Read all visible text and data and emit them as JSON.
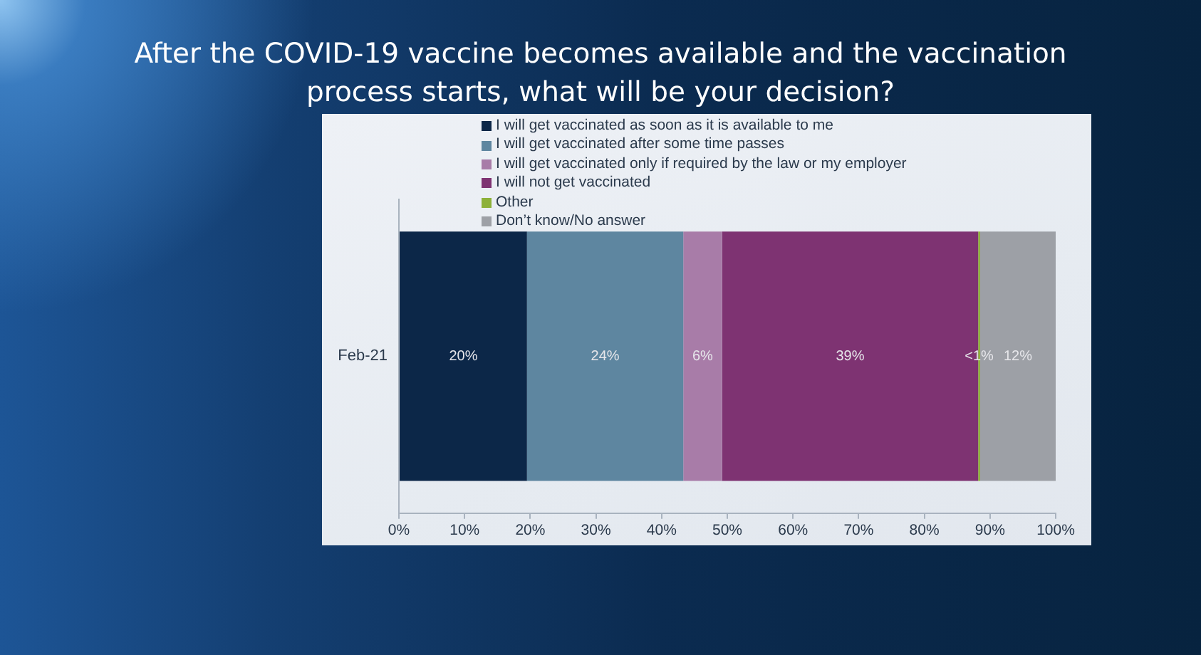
{
  "chart_data": {
    "type": "bar",
    "orientation": "horizontal",
    "stacked": true,
    "title": "After the COVID-19 vaccine becomes available and the vaccination process starts, what will be your decision?",
    "categories": [
      "Feb-21"
    ],
    "series": [
      {
        "name": "I will get vaccinated as soon as it is available to me",
        "color": "#0c2748",
        "values": [
          19.5
        ],
        "value_labels": [
          "20%"
        ]
      },
      {
        "name": "I will get vaccinated after some time passes",
        "color": "#5e86a0",
        "values": [
          23.8
        ],
        "value_labels": [
          "24%"
        ]
      },
      {
        "name": "I will get vaccinated only if required by the law or my employer",
        "color": "#a87ca8",
        "values": [
          5.9
        ],
        "value_labels": [
          "6%"
        ]
      },
      {
        "name": "I will not get vaccinated",
        "color": "#7e3372",
        "values": [
          39.0
        ],
        "value_labels": [
          "39%"
        ]
      },
      {
        "name": "Other",
        "color": "#8db13a",
        "values": [
          0.3
        ],
        "value_labels": [
          "<1%"
        ]
      },
      {
        "name": "Don’t know/No answer",
        "color": "#9da0a6",
        "values": [
          11.5
        ],
        "value_labels": [
          "12%"
        ]
      }
    ],
    "xlim": [
      0,
      100
    ],
    "xticks": [
      {
        "value": 0,
        "label": "0%"
      },
      {
        "value": 10,
        "label": "10%"
      },
      {
        "value": 20,
        "label": "20%"
      },
      {
        "value": 30,
        "label": "30%"
      },
      {
        "value": 40,
        "label": "40%"
      },
      {
        "value": 50,
        "label": "50%"
      },
      {
        "value": 60,
        "label": "60%"
      },
      {
        "value": 70,
        "label": "70%"
      },
      {
        "value": 80,
        "label": "80%"
      },
      {
        "value": 90,
        "label": "90%"
      },
      {
        "value": 100,
        "label": "100%"
      }
    ],
    "grid": false,
    "legend": "top"
  }
}
